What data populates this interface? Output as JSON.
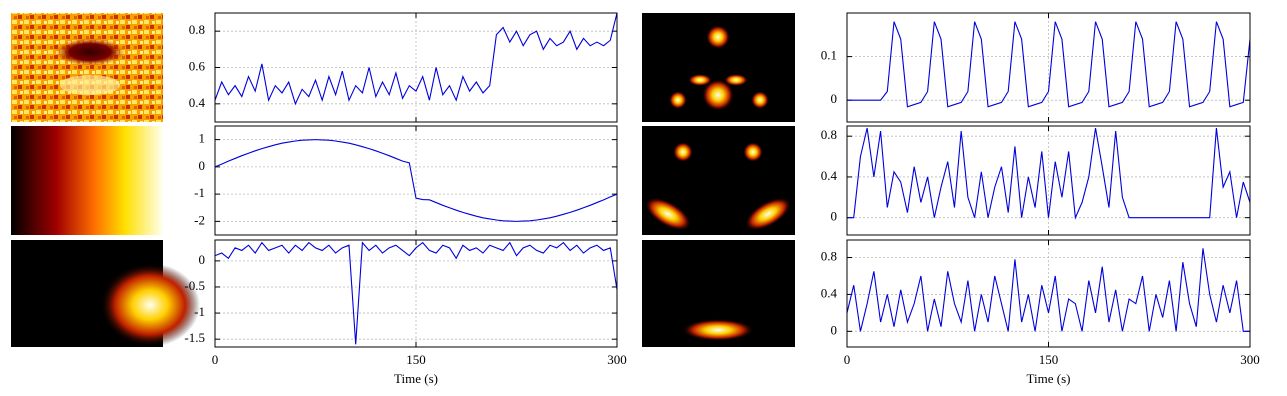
{
  "chart_data": [
    {
      "type": "line",
      "color": "#0000dd",
      "grid": true,
      "xlim": [
        0,
        300
      ],
      "ylim": [
        0.3,
        0.9
      ],
      "yticks": [
        0.4,
        0.6,
        0.8
      ],
      "x": [
        0,
        5,
        10,
        15,
        20,
        25,
        30,
        35,
        40,
        45,
        50,
        55,
        60,
        65,
        70,
        75,
        80,
        85,
        90,
        95,
        100,
        105,
        110,
        115,
        120,
        125,
        130,
        135,
        140,
        145,
        150,
        155,
        160,
        165,
        170,
        175,
        180,
        185,
        190,
        195,
        200,
        205,
        210,
        215,
        220,
        225,
        230,
        235,
        240,
        245,
        250,
        255,
        260,
        265,
        270,
        275,
        280,
        285,
        290,
        295,
        300
      ],
      "values": [
        0.42,
        0.52,
        0.45,
        0.5,
        0.44,
        0.55,
        0.47,
        0.62,
        0.42,
        0.5,
        0.46,
        0.52,
        0.4,
        0.48,
        0.44,
        0.53,
        0.42,
        0.55,
        0.45,
        0.58,
        0.42,
        0.5,
        0.46,
        0.6,
        0.44,
        0.52,
        0.45,
        0.57,
        0.43,
        0.5,
        0.47,
        0.55,
        0.42,
        0.6,
        0.45,
        0.5,
        0.42,
        0.55,
        0.47,
        0.52,
        0.46,
        0.5,
        0.78,
        0.82,
        0.74,
        0.8,
        0.72,
        0.78,
        0.8,
        0.7,
        0.76,
        0.72,
        0.74,
        0.8,
        0.7,
        0.76,
        0.72,
        0.74,
        0.72,
        0.75,
        0.9
      ]
    },
    {
      "type": "line",
      "color": "#0000dd",
      "grid": true,
      "xlim": [
        0,
        300
      ],
      "ylim": [
        -2.5,
        1.5
      ],
      "yticks": [
        1,
        0,
        -1,
        -2
      ],
      "x": [
        0,
        5,
        10,
        15,
        20,
        25,
        30,
        35,
        40,
        45,
        50,
        55,
        60,
        65,
        70,
        75,
        80,
        85,
        90,
        95,
        100,
        105,
        110,
        115,
        120,
        125,
        130,
        135,
        140,
        145,
        150,
        155,
        160,
        165,
        170,
        175,
        180,
        185,
        190,
        195,
        200,
        205,
        210,
        215,
        220,
        225,
        230,
        235,
        240,
        245,
        250,
        255,
        260,
        265,
        270,
        275,
        280,
        285,
        290,
        295,
        300
      ],
      "values": [
        0,
        0.1,
        0.21,
        0.31,
        0.41,
        0.5,
        0.59,
        0.67,
        0.74,
        0.81,
        0.87,
        0.91,
        0.95,
        0.98,
        0.99,
        1,
        0.99,
        0.98,
        0.95,
        0.91,
        0.87,
        0.81,
        0.74,
        0.67,
        0.59,
        0.5,
        0.41,
        0.31,
        0.21,
        0.15,
        -1.15,
        -1.2,
        -1.21,
        -1.31,
        -1.41,
        -1.5,
        -1.59,
        -1.67,
        -1.74,
        -1.81,
        -1.87,
        -1.91,
        -1.95,
        -1.98,
        -1.99,
        -2,
        -1.99,
        -1.98,
        -1.95,
        -1.91,
        -1.87,
        -1.81,
        -1.74,
        -1.67,
        -1.59,
        -1.5,
        -1.41,
        -1.31,
        -1.21,
        -1.1,
        -1
      ]
    },
    {
      "type": "line",
      "color": "#0000dd",
      "grid": true,
      "xlim": [
        0,
        300
      ],
      "ylim": [
        -1.65,
        0.4
      ],
      "yticks": [
        0,
        -0.5,
        -1,
        -1.5
      ],
      "xticks": [
        0,
        150,
        300
      ],
      "xlabel": "Time (s)",
      "x": [
        0,
        5,
        10,
        15,
        20,
        25,
        30,
        35,
        40,
        45,
        50,
        55,
        60,
        65,
        70,
        75,
        80,
        85,
        90,
        95,
        100,
        105,
        110,
        115,
        120,
        125,
        130,
        135,
        140,
        145,
        150,
        155,
        160,
        165,
        170,
        175,
        180,
        185,
        190,
        195,
        200,
        205,
        210,
        215,
        220,
        225,
        230,
        235,
        240,
        245,
        250,
        255,
        260,
        265,
        270,
        275,
        280,
        285,
        290,
        295,
        300
      ],
      "values": [
        0.1,
        0.15,
        0.05,
        0.25,
        0.2,
        0.3,
        0.15,
        0.35,
        0.2,
        0.25,
        0.3,
        0.15,
        0.3,
        0.2,
        0.35,
        0.25,
        0.2,
        0.3,
        0.15,
        0.25,
        0.3,
        -1.6,
        0.35,
        0.2,
        0.3,
        0.15,
        0.25,
        0.3,
        0.2,
        0.1,
        0.25,
        0.35,
        0.2,
        0.15,
        0.3,
        0.25,
        0.05,
        0.3,
        0.2,
        0.25,
        0.15,
        0.3,
        0.25,
        0.2,
        0.35,
        0.1,
        0.25,
        0.3,
        0.2,
        0.15,
        0.3,
        0.25,
        0.35,
        0.2,
        0.3,
        0.15,
        0.25,
        0.3,
        0.2,
        0.25,
        -0.55
      ]
    },
    {
      "type": "line",
      "color": "#0000dd",
      "grid": true,
      "xlim": [
        0,
        300
      ],
      "ylim": [
        -0.05,
        0.2
      ],
      "yticks": [
        0,
        0.1
      ],
      "x": [
        0,
        5,
        10,
        15,
        20,
        25,
        30,
        35,
        40,
        45,
        50,
        55,
        60,
        65,
        70,
        75,
        80,
        85,
        90,
        95,
        100,
        105,
        110,
        115,
        120,
        125,
        130,
        135,
        140,
        145,
        150,
        155,
        160,
        165,
        170,
        175,
        180,
        185,
        190,
        195,
        200,
        205,
        210,
        215,
        220,
        225,
        230,
        235,
        240,
        245,
        250,
        255,
        260,
        265,
        270,
        275,
        280,
        285,
        290,
        295,
        300
      ],
      "values": [
        0,
        0,
        0,
        0,
        0,
        0,
        0.02,
        0.18,
        0.14,
        -0.015,
        -0.01,
        -0.005,
        0.02,
        0.18,
        0.14,
        -0.015,
        -0.01,
        -0.005,
        0.02,
        0.18,
        0.14,
        -0.015,
        -0.01,
        -0.005,
        0.02,
        0.18,
        0.14,
        -0.015,
        -0.01,
        -0.005,
        0.02,
        0.18,
        0.14,
        -0.015,
        -0.01,
        -0.005,
        0.02,
        0.18,
        0.14,
        -0.015,
        -0.01,
        -0.005,
        0.02,
        0.18,
        0.14,
        -0.015,
        -0.01,
        -0.005,
        0.02,
        0.18,
        0.14,
        -0.015,
        -0.01,
        -0.005,
        0.02,
        0.18,
        0.14,
        -0.015,
        -0.01,
        -0.005,
        0.14
      ]
    },
    {
      "type": "line",
      "color": "#0000dd",
      "grid": true,
      "xlim": [
        0,
        300
      ],
      "ylim": [
        -0.17,
        0.9
      ],
      "yticks": [
        0,
        0.4,
        0.8
      ],
      "x": [
        0,
        5,
        10,
        15,
        20,
        25,
        30,
        35,
        40,
        45,
        50,
        55,
        60,
        65,
        70,
        75,
        80,
        85,
        90,
        95,
        100,
        105,
        110,
        115,
        120,
        125,
        130,
        135,
        140,
        145,
        150,
        155,
        160,
        165,
        170,
        175,
        180,
        185,
        190,
        195,
        200,
        205,
        210,
        215,
        220,
        225,
        230,
        235,
        240,
        245,
        250,
        255,
        260,
        265,
        270,
        275,
        280,
        285,
        290,
        295,
        300
      ],
      "values": [
        0,
        0,
        0.6,
        0.88,
        0.4,
        0.85,
        0.1,
        0.45,
        0.35,
        0.05,
        0.5,
        0.15,
        0.4,
        0,
        0.3,
        0.55,
        0.1,
        0.85,
        0.2,
        0,
        0.45,
        0,
        0.3,
        0.5,
        0.05,
        0.7,
        0,
        0.4,
        0.1,
        0.65,
        0,
        0.55,
        0.2,
        0.65,
        0,
        0.15,
        0.4,
        0.88,
        0.5,
        0.1,
        0.85,
        0.2,
        0,
        0,
        0,
        0,
        0,
        0,
        0,
        0,
        0,
        0,
        0,
        0,
        0,
        0.88,
        0.3,
        0.45,
        0,
        0.35,
        0.15
      ]
    },
    {
      "type": "line",
      "color": "#0000dd",
      "grid": true,
      "xlim": [
        0,
        300
      ],
      "ylim": [
        -0.17,
        0.99
      ],
      "yticks": [
        0,
        0.4,
        0.8
      ],
      "xticks": [
        0,
        150,
        300
      ],
      "xlabel": "Time (s)",
      "x": [
        0,
        5,
        10,
        15,
        20,
        25,
        30,
        35,
        40,
        45,
        50,
        55,
        60,
        65,
        70,
        75,
        80,
        85,
        90,
        95,
        100,
        105,
        110,
        115,
        120,
        125,
        130,
        135,
        140,
        145,
        150,
        155,
        160,
        165,
        170,
        175,
        180,
        185,
        190,
        195,
        200,
        205,
        210,
        215,
        220,
        225,
        230,
        235,
        240,
        245,
        250,
        255,
        260,
        265,
        270,
        275,
        280,
        285,
        290,
        295,
        300
      ],
      "values": [
        0.2,
        0.5,
        0,
        0.3,
        0.65,
        0.1,
        0.4,
        0.05,
        0.45,
        0.1,
        0.3,
        0.6,
        0,
        0.35,
        0.05,
        0.65,
        0.3,
        0.1,
        0.55,
        0,
        0.4,
        0.1,
        0.6,
        0.3,
        0,
        0.78,
        0.1,
        0.4,
        0,
        0.5,
        0.2,
        0.6,
        0,
        0.35,
        0.3,
        0,
        0.55,
        0.2,
        0.7,
        0.1,
        0.45,
        0,
        0.35,
        0.3,
        0.6,
        0,
        0.4,
        0.15,
        0.55,
        0,
        0.75,
        0.3,
        0.05,
        0.9,
        0.4,
        0.1,
        0.5,
        0.2,
        0.55,
        0,
        0
      ]
    }
  ]
}
